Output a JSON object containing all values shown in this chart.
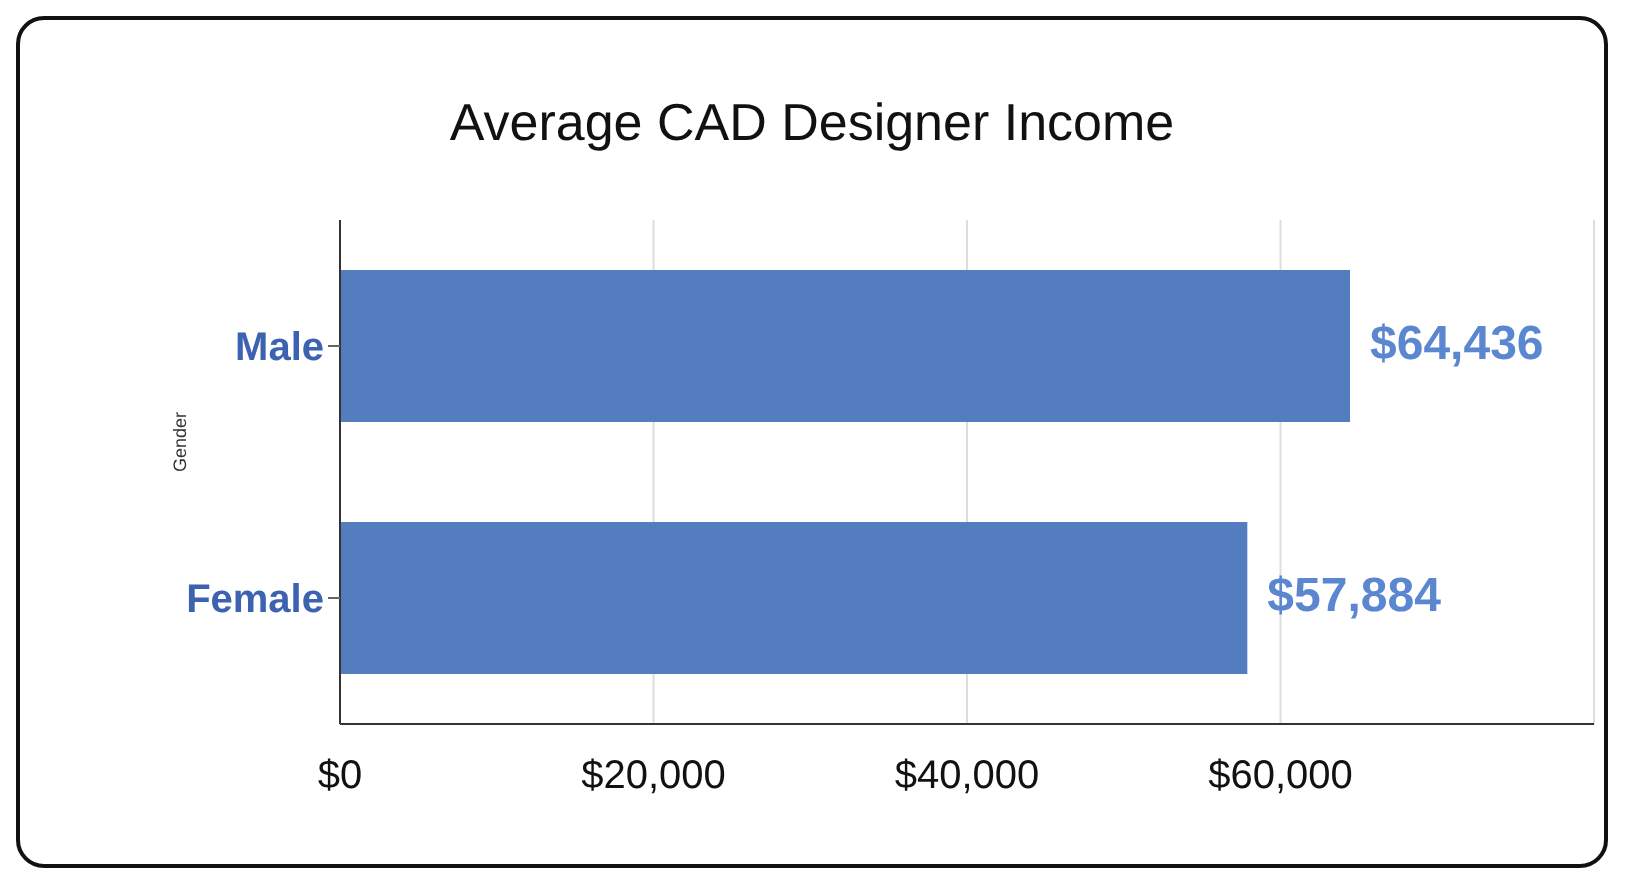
{
  "chart_data": {
    "type": "bar",
    "orientation": "horizontal",
    "title": "Average CAD Designer Income",
    "ylabel": "Gender",
    "categories": [
      "Male",
      "Female"
    ],
    "values": [
      64436,
      57884
    ],
    "color": "#547dc0",
    "value_labels": [
      "$64,436",
      "$57,884"
    ],
    "xlim": [
      0,
      80000
    ],
    "xticks": [
      {
        "value": 0,
        "label": "$0"
      },
      {
        "value": 20000,
        "label": "$20,000"
      },
      {
        "value": 40000,
        "label": "$40,000"
      },
      {
        "value": 60000,
        "label": "$60,000"
      },
      {
        "value": 80000,
        "label": null
      }
    ],
    "grid": "x"
  }
}
